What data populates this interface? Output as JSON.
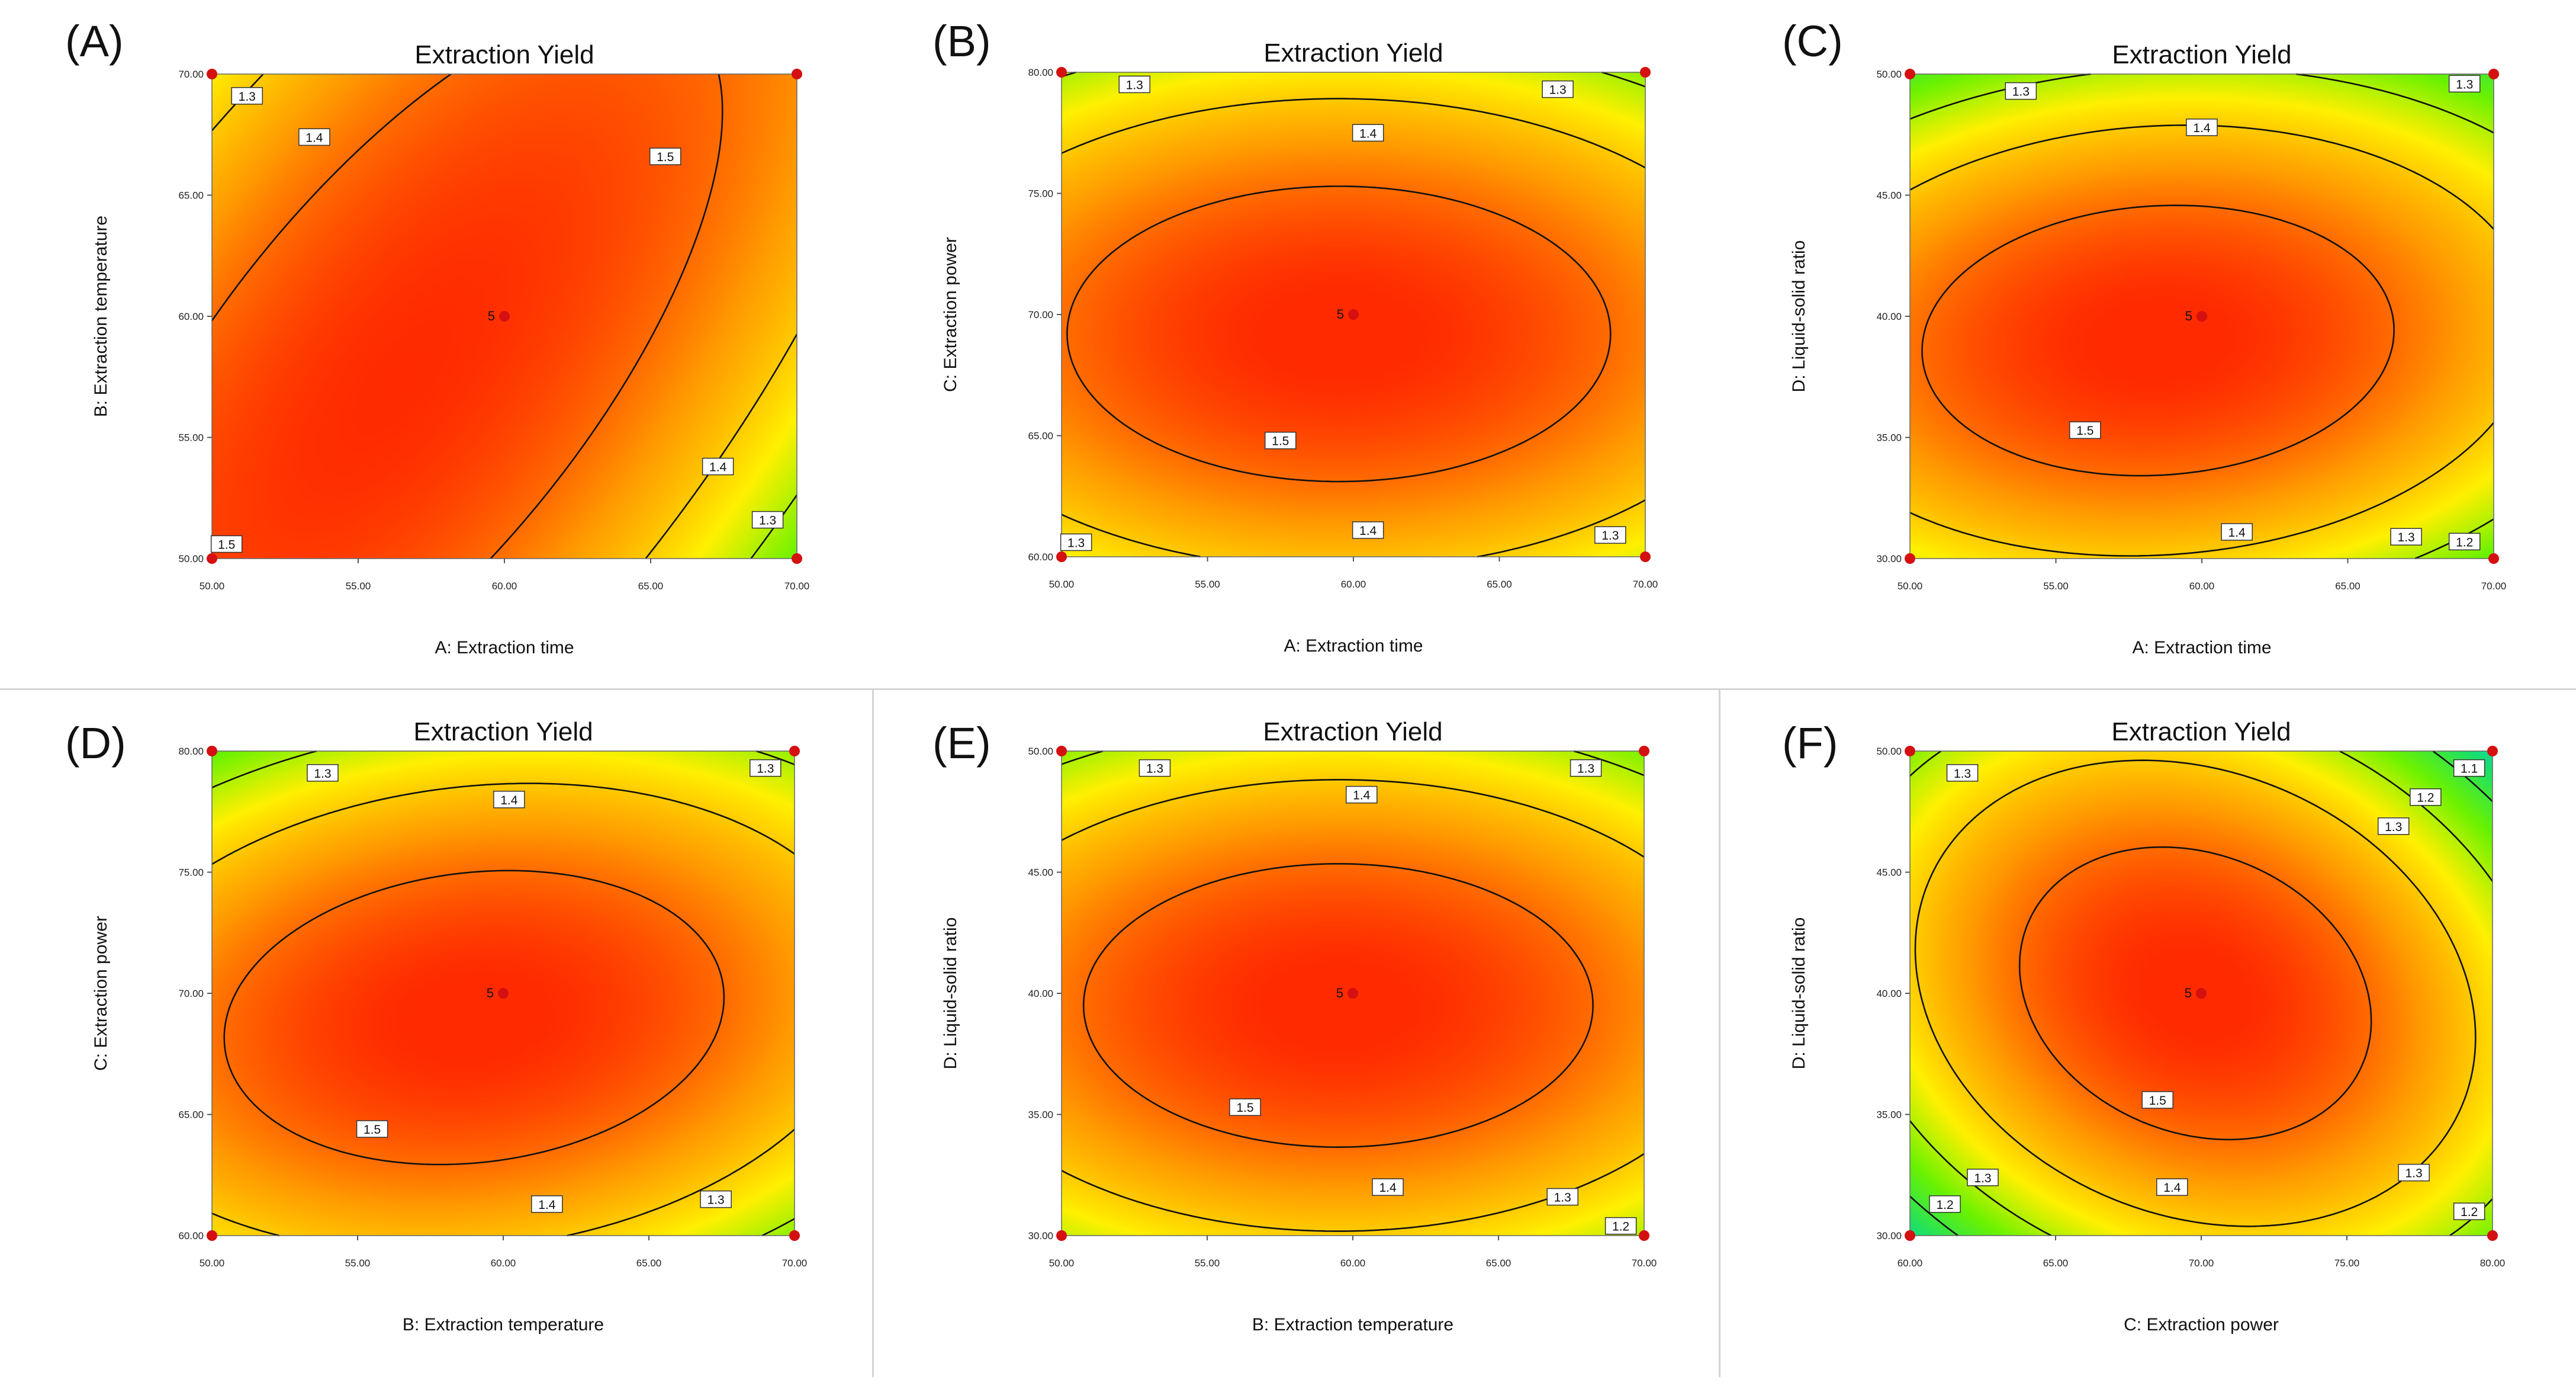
{
  "figure": {
    "panel_labels": [
      "(A)",
      "(B)",
      "(C)",
      "(D)",
      "(E)",
      "(F)"
    ]
  },
  "colors": {
    "colormap": [
      "#00c8ff",
      "#19e06a",
      "#6cf200",
      "#fff000",
      "#ff9a00",
      "#ff2a00"
    ],
    "contour_line": "#111111",
    "design_point": "#d41010"
  },
  "chart_data": [
    {
      "type": "heatmap",
      "panel": "(A)",
      "title": "Extraction Yield",
      "xlabel": "A: Extraction time",
      "ylabel": "B: Extraction temperature",
      "xlim": [
        50,
        70
      ],
      "ylim": [
        50,
        70
      ],
      "xticks": [
        "50.00",
        "55.00",
        "60.00",
        "65.00",
        "70.00"
      ],
      "yticks": [
        "50.00",
        "55.00",
        "60.00",
        "65.00",
        "70.00"
      ],
      "surface": {
        "max": 1.56,
        "optimum": [
          56.5,
          57.5
        ],
        "a": 0.001,
        "b": 0.0005,
        "c": -0.001
      },
      "contour_levels": [
        1.3,
        1.4,
        1.5
      ],
      "contour_labels": [
        {
          "text": "1.3",
          "x": 51.2,
          "y": 69.1
        },
        {
          "text": "1.4",
          "x": 53.5,
          "y": 67.4
        },
        {
          "text": "1.5",
          "x": 65.5,
          "y": 66.6
        },
        {
          "text": "1.5",
          "x": 50.5,
          "y": 50.6
        },
        {
          "text": "1.4",
          "x": 67.3,
          "y": 53.8
        },
        {
          "text": "1.3",
          "x": 69.0,
          "y": 51.6
        }
      ],
      "center_label": {
        "text": "5",
        "x": 60,
        "y": 60
      },
      "design_points": [
        [
          50,
          50
        ],
        [
          50,
          70
        ],
        [
          70,
          50
        ],
        [
          70,
          70
        ],
        [
          60,
          60
        ]
      ]
    },
    {
      "type": "heatmap",
      "panel": "(B)",
      "title": "Extraction Yield",
      "xlabel": "A: Extraction time",
      "ylabel": "C: Extraction power",
      "xlim": [
        50,
        70
      ],
      "ylim": [
        60,
        80
      ],
      "xticks": [
        "50.00",
        "55.00",
        "60.00",
        "65.00",
        "70.00"
      ],
      "yticks": [
        "60.00",
        "65.00",
        "70.00",
        "75.00",
        "80.00"
      ],
      "surface": {
        "max": 1.565,
        "optimum": [
          59.5,
          69.2
        ],
        "a": 0.00075,
        "b": 0.00175,
        "c": 0
      },
      "contour_levels": [
        1.3,
        1.4,
        1.5
      ],
      "contour_labels": [
        {
          "text": "1.3",
          "x": 52.5,
          "y": 79.5
        },
        {
          "text": "1.3",
          "x": 67.0,
          "y": 79.3
        },
        {
          "text": "1.4",
          "x": 60.5,
          "y": 77.5
        },
        {
          "text": "1.5",
          "x": 57.5,
          "y": 64.8
        },
        {
          "text": "1.4",
          "x": 60.5,
          "y": 61.1
        },
        {
          "text": "1.3",
          "x": 50.5,
          "y": 60.6
        },
        {
          "text": "1.3",
          "x": 68.8,
          "y": 60.9
        }
      ],
      "center_label": {
        "text": "5",
        "x": 60,
        "y": 70
      },
      "design_points": [
        [
          50,
          60
        ],
        [
          50,
          80
        ],
        [
          70,
          60
        ],
        [
          70,
          80
        ],
        [
          60,
          70
        ]
      ]
    },
    {
      "type": "heatmap",
      "panel": "(C)",
      "title": "Extraction Yield",
      "xlabel": "A: Extraction time",
      "ylabel": "D: Liquid-solid ratio",
      "xlim": [
        50,
        70
      ],
      "ylim": [
        30,
        50
      ],
      "xticks": [
        "50.00",
        "55.00",
        "60.00",
        "65.00",
        "70.00"
      ],
      "yticks": [
        "30.00",
        "35.00",
        "40.00",
        "45.00",
        "50.00"
      ],
      "surface": {
        "max": 1.565,
        "optimum": [
          58.5,
          39.0
        ],
        "a": 0.001,
        "b": 0.0021,
        "c": -0.00022
      },
      "contour_levels": [
        1.2,
        1.3,
        1.4,
        1.5
      ],
      "contour_labels": [
        {
          "text": "1.3",
          "x": 53.8,
          "y": 49.3
        },
        {
          "text": "1.3",
          "x": 69.0,
          "y": 49.6
        },
        {
          "text": "1.4",
          "x": 60.0,
          "y": 47.8
        },
        {
          "text": "1.5",
          "x": 56.0,
          "y": 35.3
        },
        {
          "text": "1.4",
          "x": 61.2,
          "y": 31.1
        },
        {
          "text": "1.3",
          "x": 67.0,
          "y": 30.9
        },
        {
          "text": "1.2",
          "x": 69.0,
          "y": 30.7
        }
      ],
      "center_label": {
        "text": "5",
        "x": 60,
        "y": 40
      },
      "design_points": [
        [
          50,
          30
        ],
        [
          50,
          50
        ],
        [
          70,
          30
        ],
        [
          70,
          50
        ],
        [
          60,
          40
        ]
      ]
    },
    {
      "type": "heatmap",
      "panel": "(D)",
      "title": "Extraction Yield",
      "xlabel": "B: Extraction temperature",
      "ylabel": "C: Extraction power",
      "xlim": [
        50,
        70
      ],
      "ylim": [
        60,
        80
      ],
      "xticks": [
        "50.00",
        "55.00",
        "60.00",
        "65.00",
        "70.00"
      ],
      "yticks": [
        "60.00",
        "65.00",
        "70.00",
        "75.00",
        "80.00"
      ],
      "surface": {
        "max": 1.565,
        "optimum": [
          59.0,
          69.0
        ],
        "a": 0.0009,
        "b": 0.0018,
        "c": -0.00035
      },
      "contour_levels": [
        1.3,
        1.4,
        1.5
      ],
      "contour_labels": [
        {
          "text": "1.3",
          "x": 53.8,
          "y": 79.1
        },
        {
          "text": "1.3",
          "x": 69.0,
          "y": 79.3
        },
        {
          "text": "1.4",
          "x": 60.2,
          "y": 78.0
        },
        {
          "text": "1.5",
          "x": 55.5,
          "y": 64.4
        },
        {
          "text": "1.4",
          "x": 61.5,
          "y": 61.3
        },
        {
          "text": "1.3",
          "x": 67.3,
          "y": 61.5
        }
      ],
      "center_label": {
        "text": "5",
        "x": 60,
        "y": 70
      },
      "design_points": [
        [
          50,
          60
        ],
        [
          50,
          80
        ],
        [
          70,
          60
        ],
        [
          70,
          80
        ],
        [
          60,
          70
        ]
      ]
    },
    {
      "type": "heatmap",
      "panel": "(E)",
      "title": "Extraction Yield",
      "xlabel": "B: Extraction temperature",
      "ylabel": "D: Liquid-solid ratio",
      "xlim": [
        50,
        70
      ],
      "ylim": [
        30,
        50
      ],
      "xticks": [
        "50.00",
        "55.00",
        "60.00",
        "65.00",
        "70.00"
      ],
      "yticks": [
        "30.00",
        "35.00",
        "40.00",
        "45.00",
        "50.00"
      ],
      "surface": {
        "max": 1.565,
        "optimum": [
          59.5,
          39.5
        ],
        "a": 0.00085,
        "b": 0.0019,
        "c": 0
      },
      "contour_levels": [
        1.2,
        1.3,
        1.4,
        1.5
      ],
      "contour_labels": [
        {
          "text": "1.3",
          "x": 53.2,
          "y": 49.3
        },
        {
          "text": "1.3",
          "x": 68.0,
          "y": 49.3
        },
        {
          "text": "1.4",
          "x": 60.3,
          "y": 48.2
        },
        {
          "text": "1.5",
          "x": 56.3,
          "y": 35.3
        },
        {
          "text": "1.4",
          "x": 61.2,
          "y": 32.0
        },
        {
          "text": "1.3",
          "x": 67.2,
          "y": 31.6
        },
        {
          "text": "1.2",
          "x": 69.2,
          "y": 30.4
        }
      ],
      "center_label": {
        "text": "5",
        "x": 60,
        "y": 40
      },
      "design_points": [
        [
          50,
          30
        ],
        [
          50,
          50
        ],
        [
          70,
          30
        ],
        [
          70,
          50
        ],
        [
          60,
          40
        ]
      ]
    },
    {
      "type": "heatmap",
      "panel": "(F)",
      "title": "Extraction Yield",
      "xlabel": "C: Extraction power",
      "ylabel": "D: Liquid-solid ratio",
      "xlim": [
        60,
        80
      ],
      "ylim": [
        30,
        50
      ],
      "xticks": [
        "60.00",
        "65.00",
        "70.00",
        "75.00",
        "80.00"
      ],
      "yticks": [
        "30.00",
        "35.00",
        "40.00",
        "45.00",
        "50.00"
      ],
      "surface": {
        "max": 1.565,
        "optimum": [
          69.8,
          40.0
        ],
        "a": 0.00185,
        "b": 0.00185,
        "c": 0.0007
      },
      "contour_levels": [
        1.1,
        1.2,
        1.3,
        1.4,
        1.5
      ],
      "contour_labels": [
        {
          "text": "1.3",
          "x": 61.8,
          "y": 49.1
        },
        {
          "text": "1.1",
          "x": 79.2,
          "y": 49.3
        },
        {
          "text": "1.2",
          "x": 77.7,
          "y": 48.1
        },
        {
          "text": "1.3",
          "x": 76.6,
          "y": 46.9
        },
        {
          "text": "1.5",
          "x": 68.5,
          "y": 35.6
        },
        {
          "text": "1.4",
          "x": 69.0,
          "y": 32.0
        },
        {
          "text": "1.3",
          "x": 62.5,
          "y": 32.4
        },
        {
          "text": "1.2",
          "x": 61.2,
          "y": 31.3
        },
        {
          "text": "1.3",
          "x": 77.3,
          "y": 32.6
        },
        {
          "text": "1.2",
          "x": 79.2,
          "y": 31.0
        }
      ],
      "center_label": {
        "text": "5",
        "x": 70,
        "y": 40
      },
      "design_points": [
        [
          60,
          30
        ],
        [
          60,
          50
        ],
        [
          80,
          30
        ],
        [
          80,
          50
        ],
        [
          70,
          40
        ]
      ]
    }
  ]
}
